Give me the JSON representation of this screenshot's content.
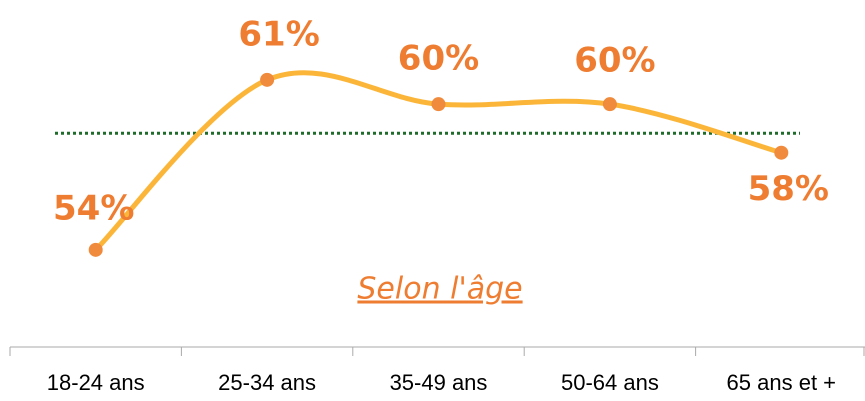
{
  "chart_data": {
    "type": "line",
    "categories": [
      "18-24 ans",
      "25-34 ans",
      "35-49 ans",
      "50-64 ans",
      "65 ans et +"
    ],
    "values": [
      54,
      61,
      60,
      60,
      58
    ],
    "value_labels": [
      "54%",
      "61%",
      "60%",
      "60%",
      "58%"
    ],
    "color": "#fbb63a",
    "marker_color": "#f08a3c",
    "label_color": "#ee7d31",
    "reference_line": 58.8,
    "reference_color": "#1e6b2a",
    "annotation": "Selon l'âge",
    "ylim": [
      50,
      64
    ],
    "smooth": true
  }
}
